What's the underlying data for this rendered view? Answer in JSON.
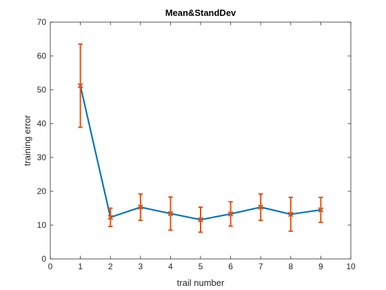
{
  "chart_data": {
    "type": "line",
    "title": "Mean&StandDev",
    "xlabel": "trail number",
    "ylabel": "training error",
    "xlim": [
      0,
      10
    ],
    "ylim": [
      0,
      70
    ],
    "xticks": [
      0,
      1,
      2,
      3,
      4,
      5,
      6,
      7,
      8,
      9,
      10
    ],
    "yticks": [
      0,
      10,
      20,
      30,
      40,
      50,
      60,
      70
    ],
    "grid": false,
    "series": [
      {
        "style": "line",
        "color": "#0072BD",
        "x": [
          1,
          2,
          3,
          4,
          5,
          6,
          7,
          8,
          9
        ],
        "y": [
          51.2,
          12.3,
          15.3,
          13.4,
          11.6,
          13.3,
          15.3,
          13.2,
          14.5
        ]
      },
      {
        "style": "errorbar",
        "color": "#D95319",
        "marker": "x",
        "x": [
          1,
          2,
          3,
          4,
          5,
          6,
          7,
          8,
          9
        ],
        "y": [
          51.2,
          12.3,
          15.3,
          13.4,
          11.6,
          13.3,
          15.3,
          13.2,
          14.5
        ],
        "err": [
          12.3,
          2.7,
          3.9,
          4.9,
          3.7,
          3.6,
          3.9,
          5.0,
          3.7
        ]
      }
    ]
  }
}
